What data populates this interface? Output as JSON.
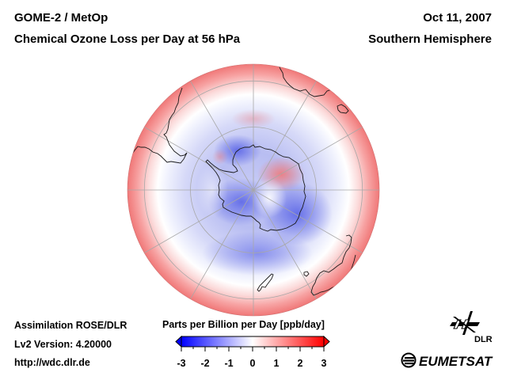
{
  "header": {
    "instrument": "GOME-2 / MetOp",
    "product": "Chemical Ozone Loss per Day at 56 hPa",
    "date": "Oct 11, 2007",
    "region": "Southern Hemisphere"
  },
  "footer": {
    "assimilation": "Assimilation ROSE/DLR",
    "version": "Lv2 Version: 4.20000",
    "url": "http://wdc.dlr.de"
  },
  "map": {
    "projection": "orthographic polar (south pole centered)",
    "graticule": {
      "lat_circles_deg": [
        -60,
        -30
      ],
      "meridian_spacing_deg": 30
    },
    "field_description": "ozone loss rate; blue (negative) ring over/around Antarctica, red (positive) near equatorial rim, localized positive patch over East Antarctica"
  },
  "colorbar": {
    "title": "Parts per Billion per Day [ppb/day]",
    "min": -3,
    "max": 3,
    "ticks": [
      "-3",
      "-2",
      "-1",
      "0",
      "1",
      "2",
      "3"
    ],
    "colors": {
      "low": "#0000ff",
      "mid": "#ffffff",
      "high": "#ff0000"
    },
    "extend": "both"
  },
  "logos": {
    "dlr": "DLR",
    "eumetsat": "EUMETSAT"
  }
}
